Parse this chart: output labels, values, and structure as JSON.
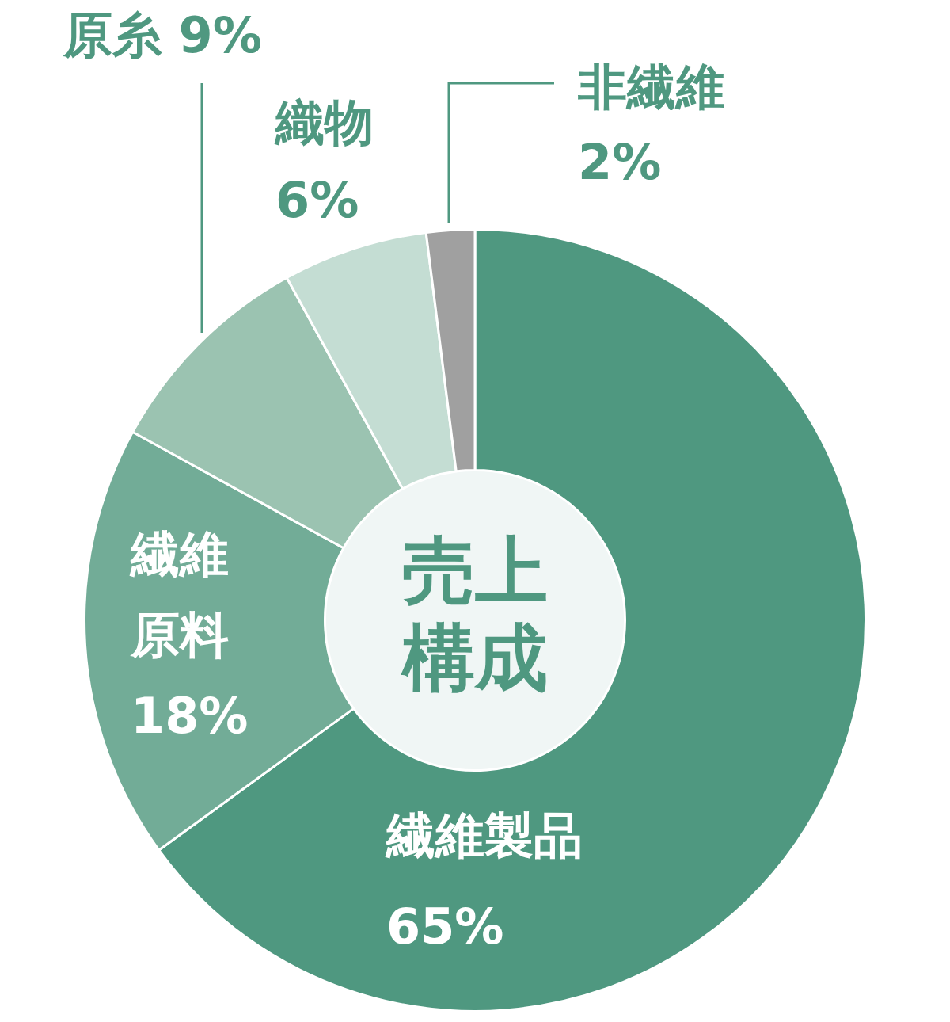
{
  "chart_data": {
    "type": "donut",
    "title": "売上構成",
    "categories": [
      "繊維製品",
      "繊維原料",
      "原糸",
      "織物",
      "非繊維"
    ],
    "values": [
      65,
      18,
      9,
      6,
      2
    ],
    "colors": [
      "#4f9880",
      "#72ac97",
      "#9bc3b1",
      "#c4ddd3",
      "#a0a0a0"
    ],
    "value_labels": [
      "65%",
      "18%",
      "9%",
      "6%",
      "2%"
    ]
  }
}
